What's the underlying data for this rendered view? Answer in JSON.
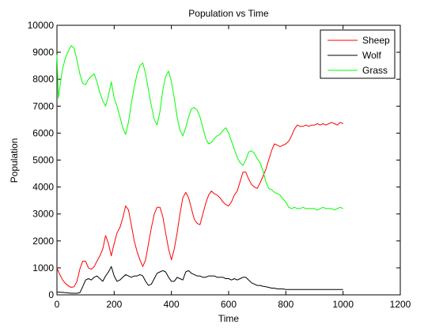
{
  "chart_data": {
    "type": "line",
    "title": "Population vs Time",
    "xlabel": "Time",
    "ylabel": "Population",
    "xlim": [
      0,
      1200
    ],
    "ylim": [
      0,
      10000
    ],
    "xticks": [
      0,
      200,
      400,
      600,
      800,
      1000,
      1200
    ],
    "yticks": [
      0,
      1000,
      2000,
      3000,
      4000,
      5000,
      6000,
      7000,
      8000,
      9000,
      10000
    ],
    "grid": false,
    "legend_position": "top-right",
    "series": [
      {
        "name": "Sheep",
        "color": "#ff0000",
        "x": [
          0,
          10,
          20,
          30,
          40,
          50,
          60,
          70,
          80,
          90,
          100,
          110,
          120,
          130,
          140,
          150,
          160,
          170,
          180,
          190,
          200,
          210,
          220,
          230,
          240,
          250,
          260,
          270,
          280,
          290,
          300,
          310,
          320,
          330,
          340,
          350,
          360,
          370,
          380,
          390,
          400,
          410,
          420,
          430,
          440,
          450,
          460,
          470,
          480,
          490,
          500,
          510,
          520,
          530,
          540,
          550,
          560,
          570,
          580,
          590,
          600,
          610,
          620,
          630,
          640,
          650,
          660,
          670,
          680,
          690,
          700,
          710,
          720,
          730,
          740,
          750,
          760,
          770,
          780,
          790,
          800,
          810,
          820,
          830,
          840,
          850,
          860,
          870,
          880,
          890,
          900,
          910,
          920,
          930,
          940,
          950,
          960,
          970,
          980,
          990,
          1000
        ],
        "y": [
          1000,
          750,
          550,
          420,
          330,
          280,
          300,
          500,
          950,
          1250,
          1250,
          1000,
          950,
          1050,
          1250,
          1450,
          1700,
          2200,
          1900,
          1450,
          1900,
          2300,
          2500,
          2850,
          3300,
          3150,
          2600,
          2000,
          1600,
          1300,
          1050,
          1300,
          1900,
          2500,
          3000,
          3250,
          3250,
          2900,
          2300,
          1700,
          1300,
          1700,
          2300,
          3000,
          3600,
          3800,
          3600,
          3200,
          2800,
          2650,
          2600,
          3000,
          3400,
          3700,
          3850,
          3750,
          3700,
          3600,
          3450,
          3350,
          3300,
          3450,
          3700,
          3850,
          4200,
          4550,
          4550,
          4300,
          4100,
          4000,
          3950,
          4150,
          4400,
          4650,
          5000,
          5350,
          5600,
          5550,
          5500,
          5550,
          5600,
          5700,
          5900,
          6150,
          6300,
          6250,
          6250,
          6300,
          6250,
          6300,
          6300,
          6350,
          6300,
          6350,
          6300,
          6350,
          6400,
          6350,
          6300,
          6400,
          6350
        ]
      },
      {
        "name": "Wolf",
        "color": "#000000",
        "x": [
          0,
          10,
          20,
          30,
          40,
          50,
          60,
          70,
          80,
          90,
          100,
          110,
          120,
          130,
          140,
          150,
          160,
          170,
          180,
          190,
          200,
          210,
          220,
          230,
          240,
          250,
          260,
          270,
          280,
          290,
          300,
          310,
          320,
          330,
          340,
          350,
          360,
          370,
          380,
          390,
          400,
          410,
          420,
          430,
          440,
          450,
          460,
          470,
          480,
          490,
          500,
          510,
          520,
          530,
          540,
          550,
          560,
          570,
          580,
          590,
          600,
          610,
          620,
          630,
          640,
          650,
          660,
          670,
          680,
          690,
          700,
          710,
          720,
          730,
          740,
          750,
          760,
          770,
          780,
          790,
          800,
          850,
          900,
          950,
          1000
        ],
        "y": [
          100,
          100,
          90,
          80,
          70,
          60,
          60,
          60,
          80,
          300,
          550,
          600,
          550,
          650,
          700,
          600,
          500,
          700,
          850,
          1050,
          700,
          500,
          550,
          650,
          750,
          700,
          650,
          700,
          700,
          750,
          700,
          500,
          350,
          400,
          600,
          800,
          850,
          900,
          850,
          650,
          500,
          500,
          650,
          600,
          550,
          850,
          900,
          800,
          750,
          700,
          700,
          650,
          650,
          700,
          700,
          700,
          650,
          650,
          650,
          600,
          600,
          550,
          600,
          550,
          600,
          650,
          650,
          550,
          450,
          400,
          350,
          350,
          320,
          300,
          280,
          250,
          250,
          220,
          220,
          220,
          200,
          200,
          200,
          200,
          200
        ]
      },
      {
        "name": "Grass",
        "color": "#00ff00",
        "x": [
          0,
          5,
          10,
          20,
          30,
          40,
          50,
          60,
          70,
          80,
          90,
          100,
          110,
          120,
          130,
          140,
          150,
          160,
          170,
          180,
          190,
          200,
          210,
          220,
          230,
          240,
          250,
          260,
          270,
          280,
          290,
          300,
          310,
          320,
          330,
          340,
          350,
          360,
          370,
          380,
          390,
          400,
          410,
          420,
          430,
          440,
          450,
          460,
          470,
          480,
          490,
          500,
          510,
          520,
          530,
          540,
          550,
          560,
          570,
          580,
          590,
          600,
          610,
          620,
          630,
          640,
          650,
          660,
          670,
          680,
          690,
          700,
          710,
          720,
          730,
          740,
          750,
          760,
          770,
          780,
          790,
          800,
          810,
          820,
          830,
          840,
          850,
          860,
          870,
          880,
          890,
          900,
          910,
          920,
          930,
          940,
          950,
          960,
          970,
          980,
          990,
          1000
        ],
        "y": [
          8900,
          7300,
          7700,
          8400,
          8800,
          9050,
          9250,
          9150,
          8700,
          8200,
          7850,
          7800,
          8000,
          8100,
          8200,
          7900,
          7500,
          7200,
          7000,
          7400,
          7900,
          7300,
          7000,
          6600,
          6200,
          5950,
          6400,
          7100,
          7700,
          8200,
          8500,
          8600,
          8200,
          7600,
          7000,
          6500,
          6300,
          6800,
          7600,
          8100,
          8300,
          7900,
          7300,
          6600,
          6100,
          5900,
          6200,
          6600,
          6900,
          6950,
          6850,
          6600,
          6200,
          5800,
          5600,
          5650,
          5800,
          5900,
          5950,
          6100,
          6200,
          6000,
          5700,
          5400,
          5100,
          4900,
          4800,
          5000,
          5300,
          5350,
          5250,
          5050,
          4900,
          4600,
          4200,
          3950,
          3900,
          3800,
          3750,
          3700,
          3550,
          3450,
          3250,
          3200,
          3250,
          3200,
          3200,
          3250,
          3200,
          3200,
          3200,
          3200,
          3150,
          3200,
          3250,
          3200,
          3200,
          3200,
          3150,
          3200,
          3250,
          3200
        ]
      }
    ]
  }
}
